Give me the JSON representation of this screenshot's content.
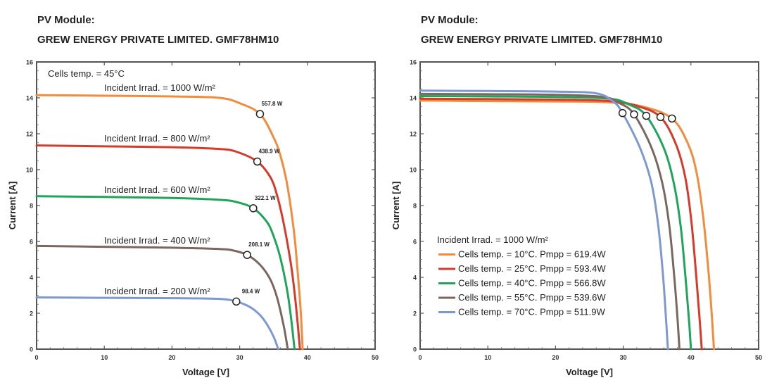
{
  "chart_data": [
    {
      "type": "line",
      "title_line1": "PV Module:",
      "title_line2": "GREW ENERGY PRIVATE LIMITED. GMF78HM10",
      "xlabel": "Voltage [V]",
      "ylabel": "Current [A]",
      "xlim": [
        0,
        50
      ],
      "ylim": [
        0,
        16
      ],
      "xticks": [
        0,
        10,
        20,
        30,
        40,
        50
      ],
      "yticks": [
        0,
        2,
        4,
        6,
        8,
        10,
        12,
        14,
        16
      ],
      "grid": false,
      "annotation": "Cells temp. = 45°C",
      "series": [
        {
          "name": "Incident Irrad. = 1000 W/m²",
          "color": "#F28C3C",
          "x": [
            0,
            10,
            20,
            27,
            30,
            33,
            35,
            36,
            37,
            38,
            38.5,
            39,
            39.3
          ],
          "y": [
            14.15,
            14.12,
            14.08,
            14.0,
            13.7,
            13.1,
            11.8,
            10.8,
            9.2,
            6.6,
            4.6,
            2.2,
            0
          ],
          "mpp": {
            "v": 33.0,
            "i": 13.1,
            "label": "557.8 W"
          }
        },
        {
          "name": "Incident Irrad. = 800 W/m²",
          "color": "#D63A2A",
          "x": [
            0,
            10,
            20,
            27,
            29.5,
            32.6,
            34.5,
            35.5,
            36.5,
            37.5,
            38,
            38.5,
            38.9
          ],
          "y": [
            11.35,
            11.3,
            11.25,
            11.15,
            11.0,
            10.45,
            9.6,
            8.6,
            7.0,
            4.9,
            3.5,
            1.7,
            0
          ],
          "mpp": {
            "v": 32.6,
            "i": 10.45,
            "label": "438.9 W"
          }
        },
        {
          "name": "Incident Irrad. = 600 W/m²",
          "color": "#1FA55A",
          "x": [
            0,
            10,
            20,
            27,
            29.5,
            32.0,
            34,
            35,
            36,
            37,
            37.6,
            38.1
          ],
          "y": [
            8.52,
            8.48,
            8.42,
            8.32,
            8.2,
            7.85,
            7.1,
            6.3,
            5.1,
            3.3,
            1.7,
            0
          ],
          "mpp": {
            "v": 32.0,
            "i": 7.85,
            "label": "322.1 W"
          }
        },
        {
          "name": "Incident Irrad. = 400 W/m²",
          "color": "#7A675F",
          "x": [
            0,
            10,
            20,
            27,
            29,
            31.1,
            33,
            34.5,
            35.5,
            36.5,
            37.1
          ],
          "y": [
            5.75,
            5.7,
            5.65,
            5.58,
            5.5,
            5.25,
            4.7,
            3.9,
            2.9,
            1.3,
            0
          ],
          "mpp": {
            "v": 31.1,
            "i": 5.25,
            "label": "208.1 W"
          }
        },
        {
          "name": "Incident Irrad. = 200 W/m²",
          "color": "#7E98D2",
          "x": [
            0,
            10,
            20,
            27,
            29.5,
            31.5,
            33,
            34,
            35,
            35.7
          ],
          "y": [
            2.88,
            2.86,
            2.84,
            2.8,
            2.65,
            2.35,
            1.9,
            1.4,
            0.7,
            0
          ],
          "mpp": {
            "v": 29.5,
            "i": 2.65,
            "label": "98.4 W"
          }
        }
      ]
    },
    {
      "type": "line",
      "title_line1": "PV Module:",
      "title_line2": "GREW ENERGY PRIVATE LIMITED. GMF78HM10",
      "xlabel": "Voltage [V]",
      "ylabel": "Current [A]",
      "xlim": [
        0,
        50
      ],
      "ylim": [
        0,
        16
      ],
      "xticks": [
        0,
        10,
        20,
        30,
        40,
        50
      ],
      "yticks": [
        0,
        2,
        4,
        6,
        8,
        10,
        12,
        14,
        16
      ],
      "grid": false,
      "legend_title": "Incident Irrad. = 1000 W/m²",
      "legend_position": "bottom-left",
      "series": [
        {
          "name": "Cells temp. = 10°C. Pmpp = 619.4W",
          "color": "#F28C3C",
          "x": [
            0,
            10,
            20,
            28,
            33,
            37.2,
            39.5,
            40.8,
            41.8,
            42.6,
            43.1,
            43.4
          ],
          "y": [
            13.85,
            13.82,
            13.8,
            13.75,
            13.5,
            12.85,
            11.5,
            9.9,
            7.4,
            4.3,
            1.8,
            0
          ],
          "mpp": {
            "v": 37.2,
            "i": 12.85
          }
        },
        {
          "name": "Cells temp. = 25°C. Pmpp = 593.4W",
          "color": "#D63A2A",
          "x": [
            0,
            10,
            20,
            28,
            32,
            35.5,
            37.8,
            39.2,
            40.1,
            40.8,
            41.3,
            41.6
          ],
          "y": [
            13.95,
            13.93,
            13.9,
            13.82,
            13.55,
            12.93,
            11.4,
            9.5,
            7.0,
            4.0,
            1.6,
            0
          ],
          "mpp": {
            "v": 35.5,
            "i": 12.93
          }
        },
        {
          "name": "Cells temp. = 40°C. Pmpp = 566.8W",
          "color": "#1FA55A",
          "x": [
            0,
            10,
            20,
            28,
            31,
            33.4,
            36,
            37.5,
            38.5,
            39.2,
            39.7,
            40.0
          ],
          "y": [
            14.1,
            14.08,
            14.05,
            13.95,
            13.6,
            13.0,
            11.2,
            9.2,
            6.8,
            4.0,
            1.7,
            0
          ],
          "mpp": {
            "v": 33.4,
            "i": 13.0
          }
        },
        {
          "name": "Cells temp. = 55°C. Pmpp = 539.6W",
          "color": "#7A675F",
          "x": [
            0,
            10,
            20,
            27,
            29.5,
            31.6,
            34.2,
            35.8,
            36.8,
            37.5,
            38.0,
            38.3
          ],
          "y": [
            14.22,
            14.2,
            14.17,
            14.05,
            13.7,
            13.08,
            11.2,
            9.2,
            6.9,
            4.2,
            1.8,
            0
          ],
          "mpp": {
            "v": 31.6,
            "i": 13.08
          }
        },
        {
          "name": "Cells temp. = 70°C. Pmpp = 511.9W",
          "color": "#7E98D2",
          "x": [
            0,
            10,
            20,
            26,
            28.5,
            29.9,
            32.5,
            34.2,
            35.2,
            35.9,
            36.3,
            36.6
          ],
          "y": [
            14.4,
            14.38,
            14.35,
            14.25,
            13.8,
            13.15,
            11.2,
            9.2,
            6.8,
            4.0,
            1.8,
            0
          ],
          "mpp": {
            "v": 29.9,
            "i": 13.15
          }
        }
      ]
    }
  ]
}
